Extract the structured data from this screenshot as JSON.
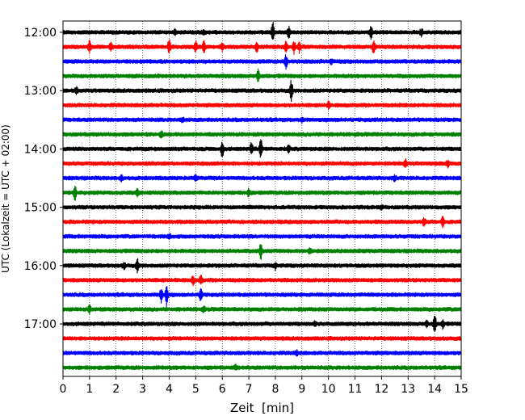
{
  "chart_data": {
    "type": "line",
    "chart_kind": "helicorder (seismogram drum plot)",
    "xlabel": "Zeit  [min]",
    "ylabel": "UTC (Lokalzeit = UTC + 02:00)",
    "xlim": [
      0,
      15
    ],
    "x_ticks": [
      0,
      1,
      2,
      3,
      4,
      5,
      6,
      7,
      8,
      9,
      10,
      11,
      12,
      13,
      14,
      15
    ],
    "x_tick_labels": [
      "0",
      "1",
      "2",
      "3",
      "4",
      "5",
      "6",
      "7",
      "8",
      "9",
      "10",
      "11",
      "12",
      "13",
      "14",
      "15"
    ],
    "y_tick_labels": [
      "12:00",
      "13:00",
      "14:00",
      "15:00",
      "16:00",
      "17:00"
    ],
    "trace_interval_minutes": 15,
    "trace_color_cycle": [
      "#000000",
      "#ff0000",
      "#0000ff",
      "#008000"
    ],
    "vertical_grid": "dotted, at every minute",
    "horizontal_grid": false,
    "legend": "none",
    "traces": [
      {
        "start": "12:00",
        "events": [
          [
            4.2,
            0.25
          ],
          [
            5.3,
            0.2
          ],
          [
            7.9,
            1.0
          ],
          [
            8.5,
            0.6
          ],
          [
            11.6,
            0.6
          ],
          [
            13.5,
            0.3
          ]
        ]
      },
      {
        "start": "12:15",
        "events": [
          [
            1.0,
            0.6
          ],
          [
            1.8,
            0.5
          ],
          [
            4.0,
            0.7
          ],
          [
            5.0,
            0.5
          ],
          [
            5.3,
            0.6
          ],
          [
            6.0,
            0.35
          ],
          [
            7.3,
            0.5
          ],
          [
            8.4,
            0.5
          ],
          [
            8.7,
            0.7
          ],
          [
            8.9,
            0.5
          ],
          [
            11.7,
            0.6
          ]
        ]
      },
      {
        "start": "12:30",
        "events": [
          [
            8.4,
            0.7
          ],
          [
            10.1,
            0.25
          ]
        ]
      },
      {
        "start": "12:45",
        "events": [
          [
            7.35,
            0.8
          ]
        ]
      },
      {
        "start": "13:00",
        "events": [
          [
            0.5,
            0.3
          ],
          [
            8.6,
            1.0
          ]
        ]
      },
      {
        "start": "13:15",
        "events": [
          [
            10.0,
            0.3
          ]
        ]
      },
      {
        "start": "13:30",
        "events": [
          [
            4.5,
            0.2
          ],
          [
            9.0,
            0.2
          ]
        ]
      },
      {
        "start": "13:45",
        "events": [
          [
            3.7,
            0.3
          ]
        ]
      },
      {
        "start": "14:00",
        "events": [
          [
            6.0,
            0.9
          ],
          [
            7.1,
            0.6
          ],
          [
            7.45,
            1.0
          ],
          [
            8.5,
            0.3
          ]
        ]
      },
      {
        "start": "14:15",
        "events": [
          [
            12.9,
            0.4
          ],
          [
            14.5,
            0.3
          ]
        ]
      },
      {
        "start": "14:30",
        "events": [
          [
            2.2,
            0.3
          ],
          [
            5.0,
            0.25
          ],
          [
            12.5,
            0.25
          ]
        ]
      },
      {
        "start": "14:45",
        "events": [
          [
            0.45,
            0.7
          ],
          [
            2.8,
            0.3
          ],
          [
            7.0,
            0.4
          ]
        ]
      },
      {
        "start": "15:00",
        "events": [
          [
            12.0,
            0.2
          ]
        ]
      },
      {
        "start": "15:15",
        "events": [
          [
            13.6,
            0.4
          ],
          [
            14.3,
            0.6
          ]
        ]
      },
      {
        "start": "15:30",
        "events": [
          [
            4.0,
            0.2
          ]
        ]
      },
      {
        "start": "15:45",
        "events": [
          [
            7.45,
            0.9
          ],
          [
            9.3,
            0.2
          ]
        ]
      },
      {
        "start": "16:00",
        "events": [
          [
            2.3,
            0.3
          ],
          [
            2.8,
            0.6
          ],
          [
            8.0,
            0.3
          ]
        ]
      },
      {
        "start": "16:15",
        "events": [
          [
            4.9,
            0.4
          ],
          [
            5.2,
            0.4
          ]
        ]
      },
      {
        "start": "16:30",
        "events": [
          [
            3.7,
            0.7
          ],
          [
            3.9,
            1.0
          ],
          [
            5.2,
            0.7
          ]
        ]
      },
      {
        "start": "16:45",
        "events": [
          [
            1.0,
            0.35
          ],
          [
            5.3,
            0.2
          ]
        ]
      },
      {
        "start": "17:00",
        "events": [
          [
            9.5,
            0.2
          ],
          [
            13.7,
            0.4
          ],
          [
            14.0,
            0.95
          ],
          [
            14.3,
            0.4
          ]
        ]
      },
      {
        "start": "17:15",
        "events": []
      },
      {
        "start": "17:30",
        "events": [
          [
            8.8,
            0.25
          ]
        ]
      },
      {
        "start": "17:45",
        "events": [
          [
            6.5,
            0.2
          ]
        ]
      }
    ]
  }
}
